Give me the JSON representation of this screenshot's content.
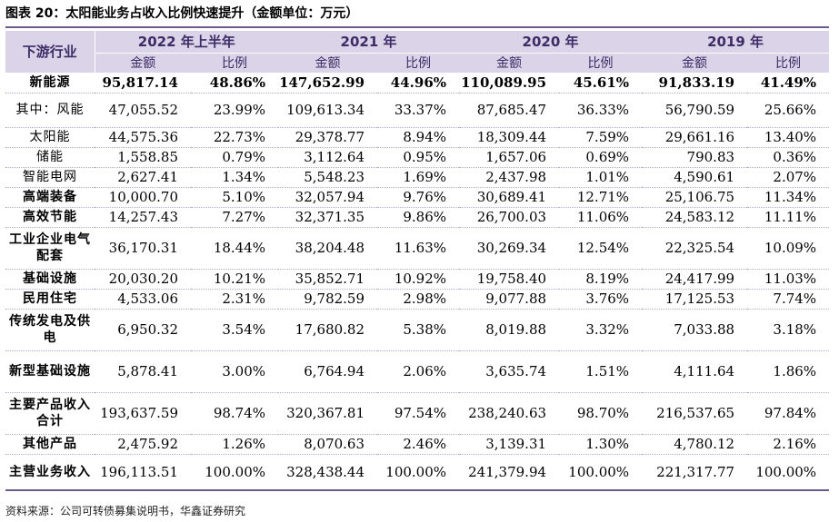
{
  "title": "图表 20：太阳能业务占收入比例快速提升（金额单位：万元）",
  "header": {
    "corner": "下游行业",
    "years": [
      "2022 年上半年",
      "2021 年",
      "2020 年",
      "2019 年"
    ],
    "amount_label": "金额",
    "ratio_label": "比例"
  },
  "rows": [
    {
      "label": "新能源",
      "values": [
        "95,817.14",
        "48.86%",
        "147,652.99",
        "44.96%",
        "110,089.95",
        "45.61%",
        "91,833.19",
        "41.49%"
      ]
    },
    {
      "label": "其中：风能",
      "values": [
        "47,055.52",
        "23.99%",
        "109,613.34",
        "33.37%",
        "87,685.47",
        "36.33%",
        "56,790.59",
        "25.66%"
      ]
    },
    {
      "label": "太阳能",
      "values": [
        "44,575.36",
        "22.73%",
        "29,378.77",
        "8.94%",
        "18,309.44",
        "7.59%",
        "29,661.16",
        "13.40%"
      ]
    },
    {
      "label": "储能",
      "values": [
        "1,558.85",
        "0.79%",
        "3,112.64",
        "0.95%",
        "1,657.06",
        "0.69%",
        "790.83",
        "0.36%"
      ]
    },
    {
      "label": "智能电网",
      "values": [
        "2,627.41",
        "1.34%",
        "5,548.23",
        "1.69%",
        "2,437.98",
        "1.01%",
        "4,590.61",
        "2.07%"
      ]
    },
    {
      "label": "高端装备",
      "values": [
        "10,000.70",
        "5.10%",
        "32,057.94",
        "9.76%",
        "30,689.41",
        "12.71%",
        "25,106.75",
        "11.34%"
      ]
    },
    {
      "label": "高效节能",
      "values": [
        "14,257.43",
        "7.27%",
        "32,371.35",
        "9.86%",
        "26,700.03",
        "11.06%",
        "24,583.12",
        "11.11%"
      ]
    },
    {
      "label": "工业企业电气配套",
      "values": [
        "36,170.31",
        "18.44%",
        "38,204.48",
        "11.63%",
        "30,269.34",
        "12.54%",
        "22,325.54",
        "10.09%"
      ]
    },
    {
      "label": "基础设施",
      "values": [
        "20,030.20",
        "10.21%",
        "35,852.71",
        "10.92%",
        "19,758.40",
        "8.19%",
        "24,417.99",
        "11.03%"
      ]
    },
    {
      "label": "民用住宅",
      "values": [
        "4,533.06",
        "2.31%",
        "9,782.59",
        "2.98%",
        "9,077.88",
        "3.76%",
        "17,125.53",
        "7.74%"
      ]
    },
    {
      "label": "传统发电及供电",
      "values": [
        "6,950.32",
        "3.54%",
        "17,680.82",
        "5.38%",
        "8,019.88",
        "3.32%",
        "7,033.88",
        "3.18%"
      ]
    },
    {
      "label": "新型基础设施",
      "values": [
        "5,878.41",
        "3.00%",
        "6,764.94",
        "2.06%",
        "3,635.74",
        "1.51%",
        "4,111.64",
        "1.86%"
      ]
    },
    {
      "label": "主要产品收入合计",
      "values": [
        "193,637.59",
        "98.74%",
        "320,367.81",
        "97.54%",
        "238,240.63",
        "98.70%",
        "216,537.65",
        "97.84%"
      ]
    },
    {
      "label": "其他产品",
      "values": [
        "2,475.92",
        "1.26%",
        "8,070.63",
        "2.46%",
        "3,139.31",
        "1.30%",
        "4,780.12",
        "2.16%"
      ]
    },
    {
      "label": "主营业务收入",
      "values": [
        "196,113.51",
        "100.00%",
        "328,438.44",
        "100.00%",
        "241,379.94",
        "100.00%",
        "221,317.77",
        "100.00%"
      ]
    }
  ],
  "source": "资料来源：公司可转债募集说明书，华鑫证券研究",
  "colors": {
    "header_bg": "#dbd3e8",
    "header_text": "#3d2c66",
    "rule": "#6f5a8e"
  }
}
